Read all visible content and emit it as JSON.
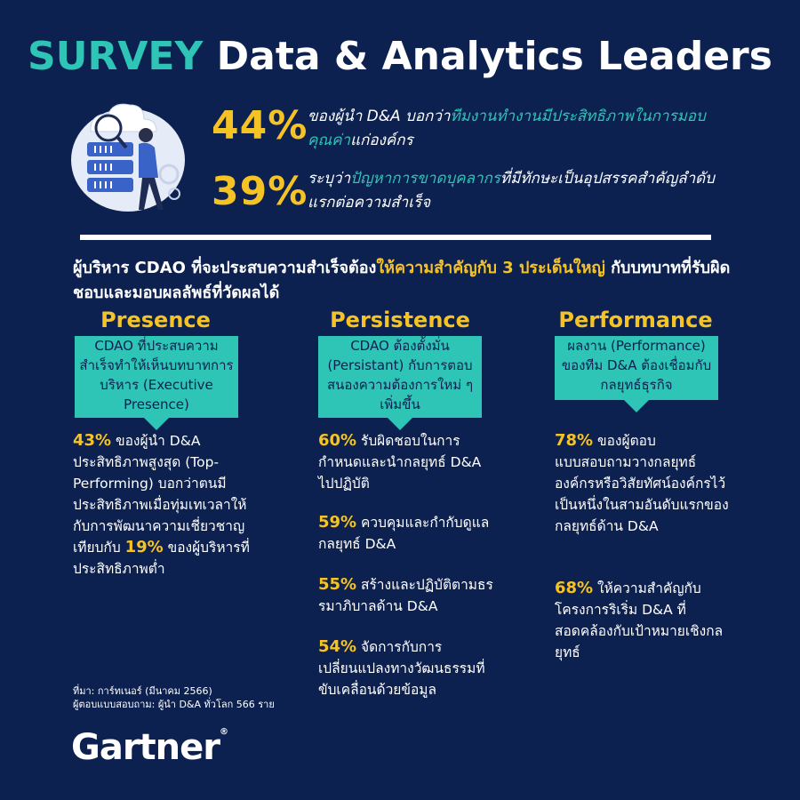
{
  "colors": {
    "background": "#0d2150",
    "teal": "#2ec4b6",
    "yellow": "#f6c325",
    "white": "#ffffff"
  },
  "title": {
    "accent": "SURVEY",
    "rest": "Data & Analytics Leaders"
  },
  "stats": [
    {
      "value": "44%",
      "pre": "ของผู้นำ D&A บอกว่า",
      "highlight": "ทีมงานทำงานมีประสิทธิภาพในการมอบคุณค่า",
      "post": "แก่องค์กร"
    },
    {
      "value": "39%",
      "pre": "ระบุว่า",
      "highlight": "ปัญหาการขาดบุคลากร",
      "post": "ที่มีทักษะเป็นอุปสรรคสำคัญลำดับแรกต่อความสำเร็จ"
    }
  ],
  "intro": {
    "pre": "ผู้บริหาร CDAO ที่จะประสบความสำเร็จต้อง",
    "highlight": "ให้ความสำคัญกับ 3 ประเด็นใหญ่",
    "post": " กับบทบาทที่รับผิดชอบและมอบผลลัพธ์ที่วัดผลได้"
  },
  "columns": [
    {
      "heading": "Presence",
      "callout": "CDAO ที่ประสบความสำเร็จทำให้เห็นบทบาทการบริหาร (Executive Presence)",
      "items": [
        {
          "num": "43%",
          "text": " ของผู้นำ D&A ประสิทธิภาพสูงสุด (Top-Performing) บอกว่าตนมีประสิทธิภาพเมื่อทุ่มเทเวลาให้กับการพัฒนาความเชี่ยวชาญเทียบกับ ",
          "num2": "19%",
          "text2": " ของผู้บริหารที่ประสิทธิภาพต่ำ"
        }
      ]
    },
    {
      "heading": "Persistence",
      "callout": "CDAO ต้องตั้งมั่น (Persistant) กับการตอบสนองความต้องการใหม่ ๆ เพิ่มขึ้น",
      "items": [
        {
          "num": "60%",
          "text": " รับผิดชอบในการกำหนดและนำกลยุทธ์ D&A ไปปฏิบัติ"
        },
        {
          "num": "59%",
          "text": " ควบคุมและกำกับดูแลกลยุทธ์ D&A"
        },
        {
          "num": "55%",
          "text": " สร้างและปฏิบัติตามธรรมาภิบาลด้าน D&A"
        },
        {
          "num": "54%",
          "text": " จัดการกับการเปลี่ยนแปลงทางวัฒนธรรมที่ขับเคลื่อนด้วยข้อมูล"
        }
      ]
    },
    {
      "heading": "Performance",
      "callout": "ผลงาน (Performance) ของทีม D&A ต้องเชื่อมกับกลยุทธ์ธุรกิจ",
      "items": [
        {
          "num": "78%",
          "text": " ของผู้ตอบแบบสอบถามวางกลยุทธ์องค์กรหรือวิสัยทัศน์องค์กรไว้เป็นหนึ่งในสามอันดับแรกของกลยุทธ์ด้าน D&A"
        },
        {
          "num": "68%",
          "text": " ให้ความสำคัญกับโครงการริเริ่ม D&A ที่สอดคล้องกับเป้าหมายเชิงกลยุทธ์"
        }
      ]
    }
  ],
  "source": {
    "line1": "ที่มา: การ์ทเนอร์ (มีนาคม 2566)",
    "line2": "ผู้ตอบแบบสอบถาม: ผู้นำ D&A ทั่วโลก 566 ราย"
  },
  "logo": {
    "text": "Gartner",
    "mark": "®"
  },
  "illustration": {
    "icon": "server-analytics-icon"
  }
}
